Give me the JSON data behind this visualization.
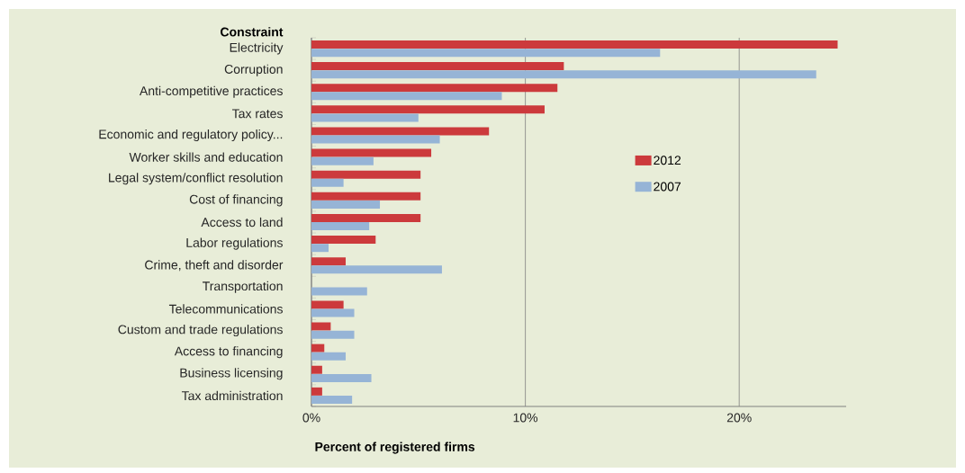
{
  "chart_data": {
    "type": "bar",
    "orientation": "horizontal",
    "ylabel": "Constraint",
    "xlabel": "Percent of registered firms",
    "categories": [
      "Electricity",
      "Corruption",
      "Anti-competitive practices",
      "Tax rates",
      "Economic and regulatory policy...",
      "Worker skills and education",
      "Legal system/conflict resolution",
      "Cost of financing",
      "Access to land",
      "Labor regulations",
      "Crime, theft and disorder",
      "Transportation",
      "Telecommunications",
      "Custom and trade regulations",
      "Access to financing",
      "Business licensing",
      "Tax administration"
    ],
    "series": [
      {
        "name": "2012",
        "color": "#cc3a3c",
        "values": [
          24.6,
          11.8,
          11.5,
          10.9,
          8.3,
          5.6,
          5.1,
          5.1,
          5.1,
          3.0,
          1.6,
          null,
          1.5,
          0.9,
          0.6,
          0.5,
          0.5
        ]
      },
      {
        "name": "2007",
        "color": "#96b4d6",
        "values": [
          16.3,
          23.6,
          8.9,
          5.0,
          6.0,
          2.9,
          1.5,
          3.2,
          2.7,
          0.8,
          6.1,
          2.6,
          2.0,
          2.0,
          1.6,
          2.8,
          1.9
        ]
      }
    ],
    "xlim": [
      0,
      25
    ],
    "xticks": [
      {
        "value": 0,
        "label": "0%"
      },
      {
        "value": 10,
        "label": "10%"
      },
      {
        "value": 20,
        "label": "20%"
      }
    ],
    "grid": "x",
    "legend": "right"
  }
}
